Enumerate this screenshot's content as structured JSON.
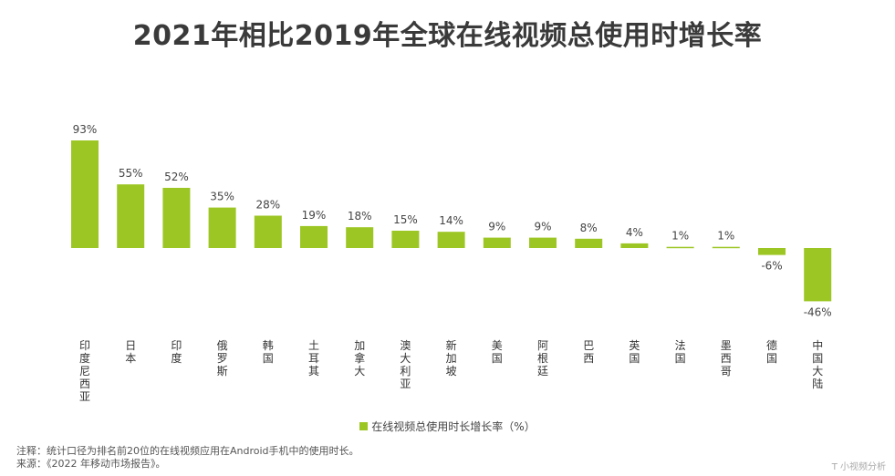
{
  "chart_data": {
    "type": "bar",
    "title": "2021年相比2019年全球在线视频总使用时增长率",
    "categories": [
      "印度尼西亚",
      "日本",
      "印度",
      "俄罗斯",
      "韩国",
      "土耳其",
      "加拿大",
      "澳大利亚",
      "新加坡",
      "美国",
      "阿根廷",
      "巴西",
      "英国",
      "法国",
      "墨西哥",
      "德国",
      "中国大陆"
    ],
    "series": [
      {
        "name": "在线视频总使用时长增长率（%）",
        "values": [
          93,
          55,
          52,
          35,
          28,
          19,
          18,
          15,
          14,
          9,
          9,
          8,
          4,
          1,
          1,
          -6,
          -46
        ]
      }
    ],
    "value_labels": [
      "93%",
      "55%",
      "52%",
      "35%",
      "28%",
      "19%",
      "18%",
      "15%",
      "14%",
      "9%",
      "9%",
      "8%",
      "4%",
      "1%",
      "1%",
      "-6%",
      "-46%"
    ],
    "ylim": [
      -50,
      100
    ],
    "xlabel": "",
    "ylabel": "",
    "legend_position": "bottom",
    "bar_color": "#9cc623"
  },
  "note": {
    "line1": "注释：统计口径为排名前20位的在线视频应用在Android手机中的使用时长。",
    "line2": "来源：《2022 年移动市场报告》。"
  },
  "watermark": "T 小视频分析"
}
